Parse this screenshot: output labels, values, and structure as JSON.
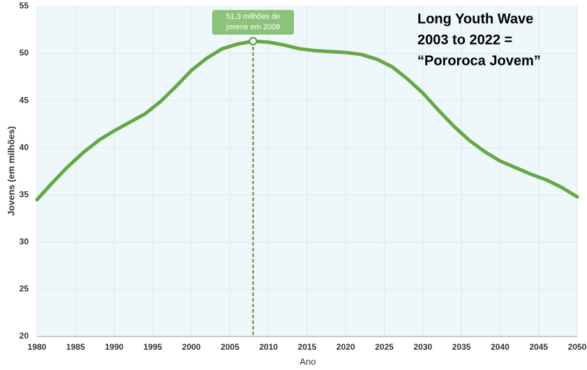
{
  "chart_data": {
    "type": "line",
    "x": [
      1980,
      1982,
      1984,
      1986,
      1988,
      1990,
      1992,
      1994,
      1996,
      1998,
      2000,
      2002,
      2004,
      2006,
      2008,
      2010,
      2012,
      2014,
      2016,
      2018,
      2020,
      2022,
      2024,
      2026,
      2028,
      2030,
      2032,
      2034,
      2036,
      2038,
      2040,
      2042,
      2044,
      2046,
      2048,
      2050
    ],
    "series": [
      {
        "name": "Jovens",
        "color": "#68a646",
        "values": [
          34.5,
          36.3,
          38.0,
          39.5,
          40.8,
          41.8,
          42.7,
          43.6,
          44.9,
          46.5,
          48.2,
          49.5,
          50.5,
          51.0,
          51.3,
          51.2,
          50.9,
          50.5,
          50.3,
          50.2,
          50.1,
          49.9,
          49.4,
          48.6,
          47.3,
          45.8,
          44.0,
          42.3,
          40.8,
          39.6,
          38.6,
          37.9,
          37.2,
          36.6,
          35.8,
          34.8
        ]
      }
    ],
    "annotation": [
      "51,3 milhões de",
      "jovens em 2008"
    ],
    "note": [
      "Long Youth Wave",
      "2003 to 2022 =",
      "“Pororoca Jovem”"
    ],
    "xlabel": "Ano",
    "ylabel": "Jovens (em milhões)",
    "xlim": [
      1980,
      2050
    ],
    "ylim": [
      20,
      55
    ],
    "xticks": [
      1980,
      1985,
      1990,
      1995,
      2000,
      2005,
      2010,
      2015,
      2020,
      2025,
      2030,
      2035,
      2040,
      2045,
      2050
    ],
    "yticks": [
      20,
      25,
      30,
      35,
      40,
      45,
      50,
      55
    ],
    "grid": true
  }
}
